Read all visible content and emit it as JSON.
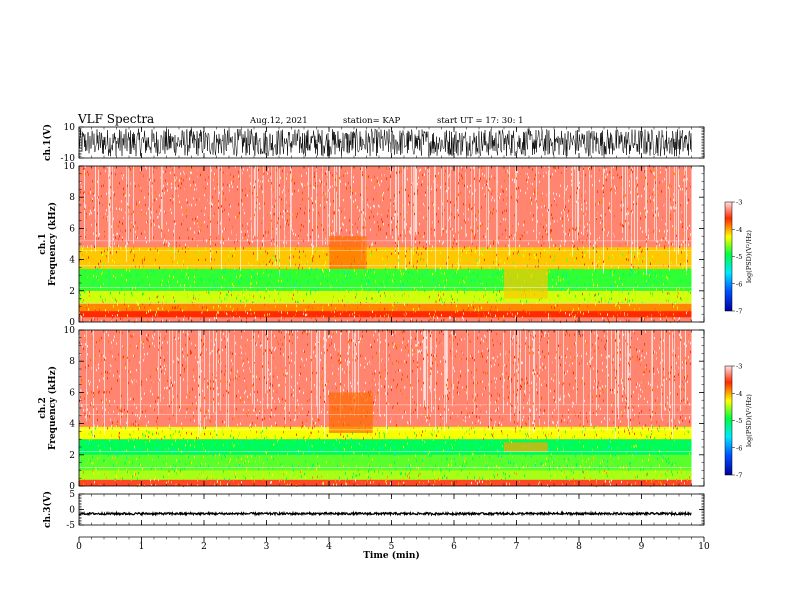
{
  "header": {
    "title": "VLF Spectra",
    "date": "Aug.12, 2021",
    "station": "station= KAP",
    "start": "start  UT  =    17: 30: 1"
  },
  "colors": {
    "low": "#0000a0",
    "mid_low": "#00b0ff",
    "mid": "#00ff40",
    "mid_high": "#ffff00",
    "high": "#ff2a00",
    "top": "#ff9090",
    "trace": "#000000"
  },
  "chart_data": [
    {
      "type": "line",
      "panel": "ch1-waveform",
      "ylabel": "ch.1(V)",
      "ylim": [
        -10,
        10
      ],
      "yticks": [
        -10,
        10
      ],
      "xlim": [
        0,
        10
      ],
      "mean_value": 0,
      "amplitude_range": [
        -9,
        9
      ]
    },
    {
      "type": "heatmap",
      "panel": "ch1-spectrogram",
      "ylabel": "ch.1\nFrequency  (kHz)",
      "ylim": [
        0,
        10
      ],
      "yticks": [
        0,
        2,
        4,
        6,
        8,
        10
      ],
      "xlim": [
        0,
        10
      ],
      "data_end_min": 9.8,
      "bands": [
        {
          "f_from": 0.0,
          "f_to": 0.3,
          "level": -3.3
        },
        {
          "f_from": 0.3,
          "f_to": 0.7,
          "level": -3.6
        },
        {
          "f_from": 0.7,
          "f_to": 1.2,
          "level": -3.9
        },
        {
          "f_from": 1.2,
          "f_to": 2.0,
          "level": -4.4
        },
        {
          "f_from": 2.0,
          "f_to": 3.4,
          "level": -4.8
        },
        {
          "f_from": 3.4,
          "f_to": 4.8,
          "level": -4.1
        },
        {
          "f_from": 4.8,
          "f_to": 10.0,
          "level": -3.3
        }
      ],
      "events": [
        {
          "t_from": 4.0,
          "t_to": 4.6,
          "f_from": 3.4,
          "f_to": 5.5,
          "level": -3.8
        },
        {
          "t_from": 6.8,
          "t_to": 7.5,
          "f_from": 1.5,
          "f_to": 3.5,
          "level": -4.1
        }
      ],
      "colorbar": {
        "label": "log(PSD)(V²/Hz)",
        "range": [
          -7,
          -3
        ],
        "ticks": [
          -7,
          -6,
          -5,
          -4,
          -3
        ]
      }
    },
    {
      "type": "heatmap",
      "panel": "ch2-spectrogram",
      "ylabel": "ch.2\nFrequency  (kHz)",
      "ylim": [
        0,
        10
      ],
      "yticks": [
        0,
        2,
        4,
        6,
        8,
        10
      ],
      "xlim": [
        0,
        10
      ],
      "data_end_min": 9.8,
      "bands": [
        {
          "f_from": 0.0,
          "f_to": 0.4,
          "level": -3.5
        },
        {
          "f_from": 0.4,
          "f_to": 1.0,
          "level": -4.5
        },
        {
          "f_from": 1.0,
          "f_to": 2.0,
          "level": -4.7
        },
        {
          "f_from": 2.0,
          "f_to": 3.0,
          "level": -5.0
        },
        {
          "f_from": 3.0,
          "f_to": 3.8,
          "level": -4.3
        },
        {
          "f_from": 3.8,
          "f_to": 10.0,
          "level": -3.3
        }
      ],
      "events": [
        {
          "t_from": 4.0,
          "t_to": 4.7,
          "f_from": 3.4,
          "f_to": 6.0,
          "level": -3.8
        },
        {
          "t_from": 6.8,
          "t_to": 7.5,
          "f_from": 2.2,
          "f_to": 2.8,
          "level": -4.0
        }
      ],
      "colorbar": {
        "label": "log(PSD)(V²/Hz)",
        "range": [
          -7,
          -3
        ],
        "ticks": [
          -7,
          -6,
          -5,
          -4,
          -3
        ]
      }
    },
    {
      "type": "line",
      "panel": "ch3-waveform",
      "ylabel": "ch.3(V)",
      "ylim": [
        -5,
        5
      ],
      "yticks": [
        -5,
        0,
        5
      ],
      "xlim": [
        0,
        10
      ],
      "xticks": [
        0,
        1,
        2,
        3,
        4,
        5,
        6,
        7,
        8,
        9,
        10
      ],
      "xlabel": "Time  (min)",
      "mean_value": -1.3,
      "amplitude_range": [
        -1.7,
        -1.0
      ]
    }
  ]
}
